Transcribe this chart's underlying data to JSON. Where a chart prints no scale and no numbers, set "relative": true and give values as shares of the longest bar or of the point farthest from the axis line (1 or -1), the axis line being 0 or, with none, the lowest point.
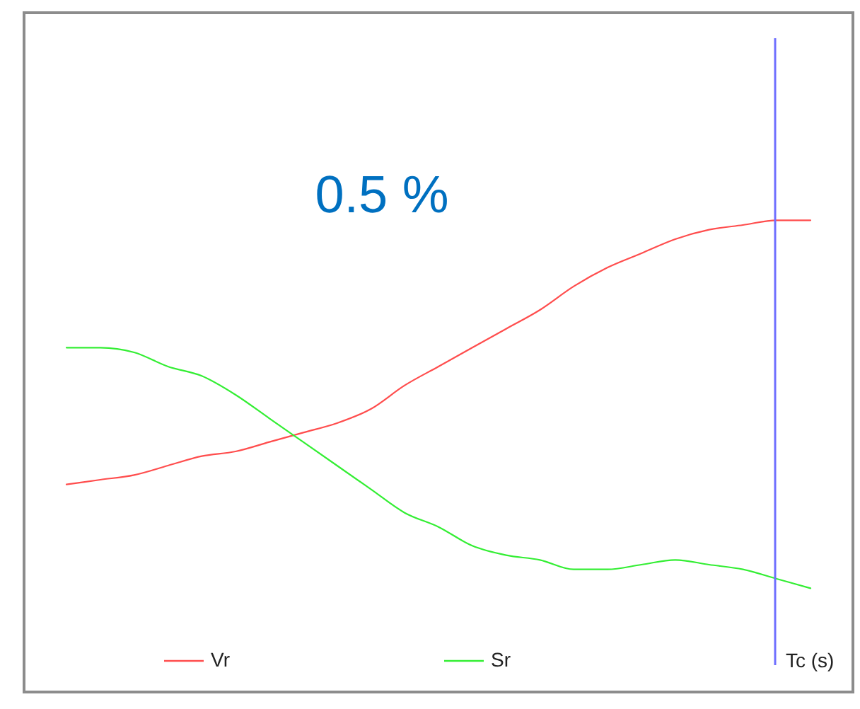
{
  "chart_data": {
    "type": "line",
    "relative": true,
    "xlabel": "Tc (s)",
    "categories": [
      null,
      null,
      null,
      null,
      null,
      null,
      null,
      null,
      null,
      null,
      null,
      null,
      null,
      null,
      null,
      null,
      null,
      null,
      null,
      null,
      null,
      null,
      null
    ],
    "series": [
      {
        "name": "Vr",
        "color": "#ff4d4d",
        "values": [
          0.44,
          0.45,
          0.46,
          0.48,
          0.5,
          0.51,
          0.53,
          0.55,
          0.57,
          0.6,
          0.65,
          0.69,
          0.73,
          0.77,
          0.81,
          0.86,
          0.9,
          0.93,
          0.96,
          0.98,
          0.99,
          1.0,
          1.0
        ]
      },
      {
        "name": "Sr",
        "color": "#33ee33",
        "values": [
          0.73,
          0.73,
          0.72,
          0.69,
          0.67,
          0.63,
          0.58,
          0.53,
          0.48,
          0.43,
          0.38,
          0.35,
          0.31,
          0.29,
          0.28,
          0.26,
          0.26,
          0.27,
          0.28,
          0.27,
          0.26,
          0.24,
          0.22
        ]
      }
    ],
    "annotations": [
      "0.5 %"
    ],
    "legend": "bottom",
    "grid": false,
    "marker": "none",
    "line_style": "solid"
  }
}
